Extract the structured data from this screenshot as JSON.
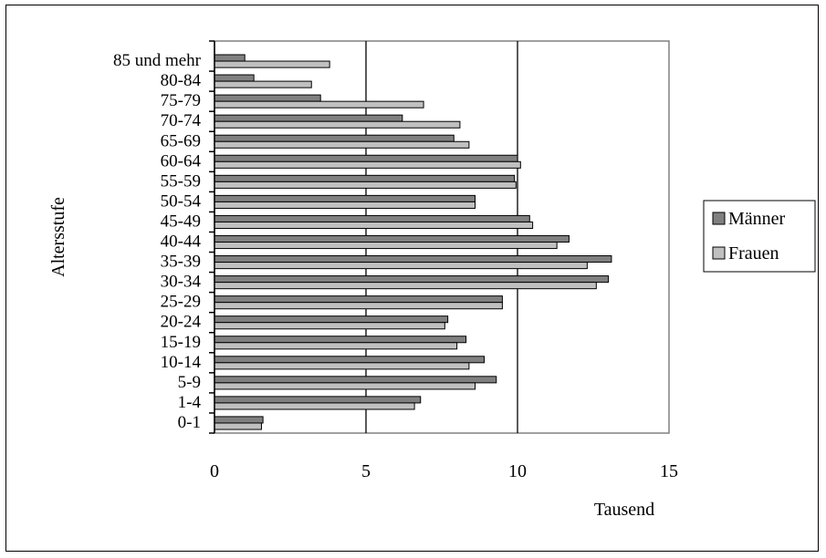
{
  "chart_data": {
    "type": "bar",
    "orientation": "horizontal",
    "ylabel": "Altersstufe",
    "xlabel": "Tausend",
    "xlim": [
      0,
      15
    ],
    "xticks": [
      0,
      5,
      10,
      15
    ],
    "grid": true,
    "legend_position": "right",
    "categories": [
      "0-1",
      "1-4",
      "5-9",
      "10-14",
      "15-19",
      "20-24",
      "25-29",
      "30-34",
      "35-39",
      "40-44",
      "45-49",
      "50-54",
      "55-59",
      "60-64",
      "65-69",
      "70-74",
      "75-79",
      "80-84",
      "85 und mehr"
    ],
    "series": [
      {
        "name": "Männer",
        "color": "#808080",
        "values": [
          1.6,
          6.8,
          9.3,
          8.9,
          8.3,
          7.7,
          9.5,
          13.0,
          13.1,
          11.7,
          10.4,
          8.6,
          9.9,
          10.0,
          7.9,
          6.2,
          3.5,
          1.3,
          1.0
        ]
      },
      {
        "name": "Frauen",
        "color": "#c0c0c0",
        "values": [
          1.55,
          6.6,
          8.6,
          8.4,
          8.0,
          7.6,
          9.5,
          12.6,
          12.3,
          11.3,
          10.5,
          8.6,
          9.95,
          10.1,
          8.4,
          8.1,
          6.9,
          3.2,
          3.8
        ]
      }
    ]
  }
}
